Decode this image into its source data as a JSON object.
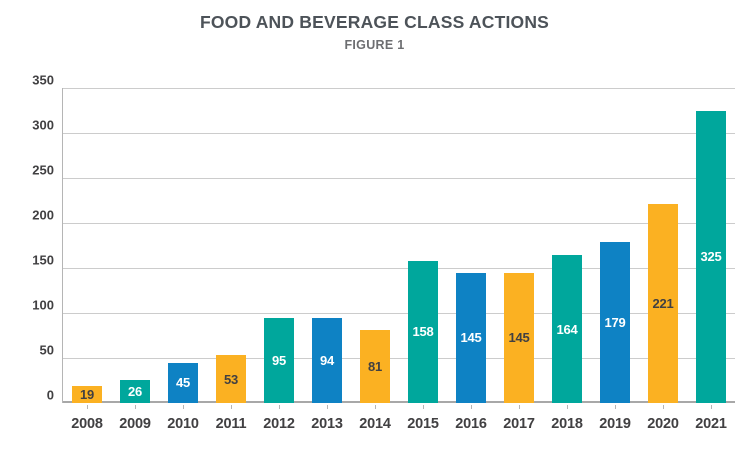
{
  "title": "FOOD AND BEVERAGE CLASS ACTIONS",
  "subtitle": "FIGURE 1",
  "palette": {
    "orange": "#FBB122",
    "teal": "#00A79C",
    "blue": "#0E82C4",
    "gridline": "#CCCCCC",
    "axis": "#A8A8A8",
    "dark_text": "#414042",
    "light_text": "#FFFFFF"
  },
  "chart_data": {
    "type": "bar",
    "title": "FOOD AND BEVERAGE CLASS ACTIONS",
    "subtitle": "FIGURE 1",
    "categories": [
      "2008",
      "2009",
      "2010",
      "2011",
      "2012",
      "2013",
      "2014",
      "2015",
      "2016",
      "2017",
      "2018",
      "2019",
      "2020",
      "2021"
    ],
    "values": [
      19,
      26,
      45,
      53,
      95,
      94,
      81,
      158,
      145,
      145,
      164,
      179,
      221,
      325
    ],
    "bar_colors": [
      "orange",
      "teal",
      "blue",
      "orange",
      "teal",
      "blue",
      "orange",
      "teal",
      "blue",
      "orange",
      "teal",
      "blue",
      "orange",
      "teal"
    ],
    "value_label_colors": [
      "dark",
      "light",
      "light",
      "dark",
      "light",
      "light",
      "dark",
      "light",
      "light",
      "dark",
      "light",
      "light",
      "dark",
      "light"
    ],
    "value_label_position": "inside-center",
    "xlabel": "",
    "ylabel": "",
    "ylim": [
      0,
      350
    ],
    "ytick_step": 50,
    "yticks": [
      0,
      50,
      100,
      150,
      200,
      250,
      300,
      350
    ],
    "grid": true,
    "legend": false
  }
}
